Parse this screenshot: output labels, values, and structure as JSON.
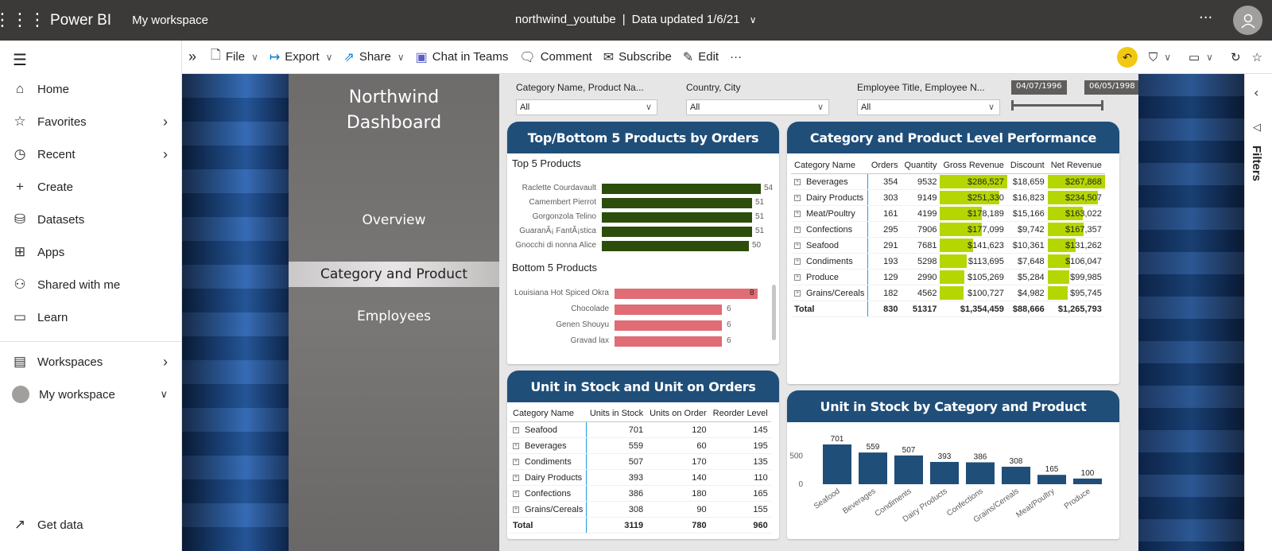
{
  "app": {
    "brand": "Power BI",
    "workspace": "My workspace",
    "report_name": "northwind_youtube",
    "data_updated": "Data updated 1/6/21"
  },
  "nav": {
    "items": [
      {
        "label": "Home",
        "icon": "home-icon"
      },
      {
        "label": "Favorites",
        "icon": "star-icon"
      },
      {
        "label": "Recent",
        "icon": "clock-icon"
      },
      {
        "label": "Create",
        "icon": "plus-icon"
      },
      {
        "label": "Datasets",
        "icon": "database-icon"
      },
      {
        "label": "Apps",
        "icon": "apps-icon"
      },
      {
        "label": "Shared with me",
        "icon": "shared-icon"
      },
      {
        "label": "Learn",
        "icon": "book-icon"
      }
    ],
    "workspaces": "Workspaces",
    "my_workspace": "My workspace",
    "get_data": "Get data"
  },
  "toolbar": {
    "file": "File",
    "export": "Export",
    "share": "Share",
    "chat": "Chat in Teams",
    "comment": "Comment",
    "subscribe": "Subscribe",
    "edit": "Edit"
  },
  "report": {
    "title_line1": "Northwind",
    "title_line2": "Dashboard",
    "pages": [
      "Overview",
      "Category and Product",
      "Employees"
    ],
    "slicers": [
      {
        "label": "Category Name, Product Na...",
        "value": "All"
      },
      {
        "label": "Country, City",
        "value": "All"
      },
      {
        "label": "Employee Title, Employee N...",
        "value": "All"
      }
    ],
    "date_from": "04/07/1996",
    "date_to": "06/05/1998"
  },
  "top_bottom": {
    "title": "Top/Bottom 5 Products by Orders",
    "top_label": "Top 5 Products",
    "bottom_label": "Bottom 5 Products",
    "top": [
      {
        "name": "Raclette Courdavault",
        "value": "54"
      },
      {
        "name": "Camembert Pierrot",
        "value": "51"
      },
      {
        "name": "Gorgonzola Telino",
        "value": "51"
      },
      {
        "name": "GuaranÃ¡ FantÃ¡stica",
        "value": "51"
      },
      {
        "name": "Gnocchi di nonna Alice",
        "value": "50"
      }
    ],
    "bottom": [
      {
        "name": "Louisiana Hot Spiced Okra",
        "value": "8"
      },
      {
        "name": "Chocolade",
        "value": "6"
      },
      {
        "name": "Genen Shouyu",
        "value": "6"
      },
      {
        "name": "Gravad lax",
        "value": "6"
      }
    ],
    "colors": {
      "top": "#2d4d0c",
      "bottom": "#e06c75"
    }
  },
  "perf": {
    "title": "Category and Product Level Performance",
    "headers": [
      "Category Name",
      "Orders",
      "Quantity",
      "Gross Revenue",
      "Discount",
      "Net Revenue"
    ],
    "rows": [
      [
        "Beverages",
        "354",
        "9532",
        "$286,527",
        "$18,659",
        "$267,868"
      ],
      [
        "Dairy Products",
        "303",
        "9149",
        "$251,330",
        "$16,823",
        "$234,507"
      ],
      [
        "Meat/Poultry",
        "161",
        "4199",
        "$178,189",
        "$15,166",
        "$163,022"
      ],
      [
        "Confections",
        "295",
        "7906",
        "$177,099",
        "$9,742",
        "$167,357"
      ],
      [
        "Seafood",
        "291",
        "7681",
        "$141,623",
        "$10,361",
        "$131,262"
      ],
      [
        "Condiments",
        "193",
        "5298",
        "$113,695",
        "$7,648",
        "$106,047"
      ],
      [
        "Produce",
        "129",
        "2990",
        "$105,269",
        "$5,284",
        "$99,985"
      ],
      [
        "Grains/Cereals",
        "182",
        "4562",
        "$100,727",
        "$4,982",
        "$95,745"
      ]
    ],
    "gross_fill": [
      1.0,
      0.877,
      0.622,
      0.618,
      0.494,
      0.397,
      0.367,
      0.352
    ],
    "net_fill": [
      1.0,
      0.875,
      0.609,
      0.625,
      0.49,
      0.396,
      0.373,
      0.357
    ],
    "total": [
      "Total",
      "830",
      "51317",
      "$1,354,459",
      "$88,666",
      "$1,265,793"
    ],
    "bar_color": "#b5d600"
  },
  "stock_table": {
    "title": "Unit in Stock and Unit on Orders",
    "headers": [
      "Category Name",
      "Units in Stock",
      "Units on Order",
      "Reorder Level"
    ],
    "rows": [
      [
        "Seafood",
        "701",
        "120",
        "145"
      ],
      [
        "Beverages",
        "559",
        "60",
        "195"
      ],
      [
        "Condiments",
        "507",
        "170",
        "135"
      ],
      [
        "Dairy Products",
        "393",
        "140",
        "110"
      ],
      [
        "Confections",
        "386",
        "180",
        "165"
      ],
      [
        "Grains/Cereals",
        "308",
        "90",
        "155"
      ]
    ],
    "total": [
      "Total",
      "3119",
      "780",
      "960"
    ]
  },
  "stock_chart": {
    "title": "Unit in Stock by Category and Product",
    "chart_data": {
      "type": "bar",
      "categories": [
        "Seafood",
        "Beverages",
        "Condiments",
        "Dairy Products",
        "Confections",
        "Grains/Cereals",
        "Meat/Poultry",
        "Produce"
      ],
      "values": [
        701,
        559,
        507,
        393,
        386,
        308,
        165,
        100
      ],
      "ylim": [
        0,
        701
      ],
      "yticks": [
        "500",
        "0"
      ],
      "color": "#1f4e79"
    }
  },
  "filters_label": "Filters"
}
